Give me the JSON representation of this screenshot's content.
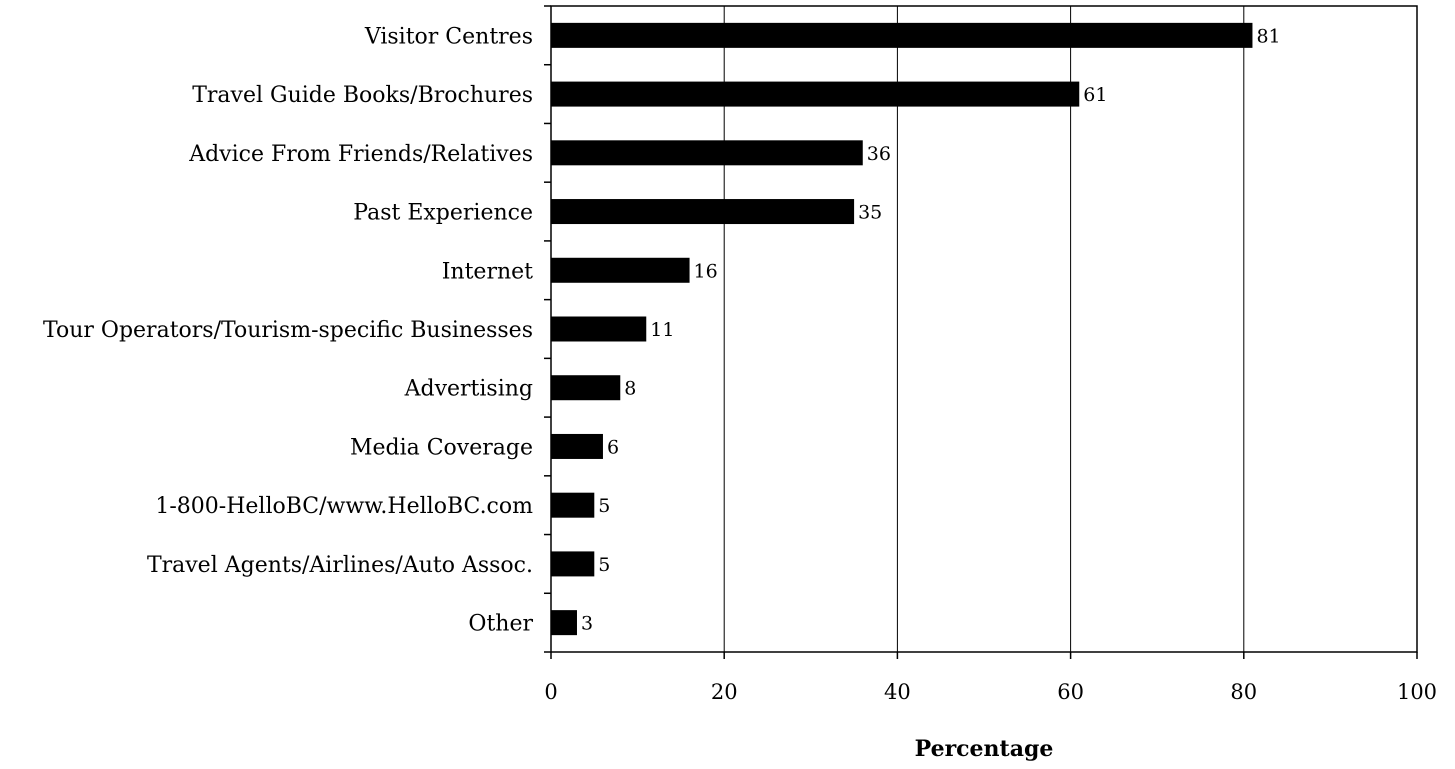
{
  "chart_data": {
    "type": "bar",
    "orientation": "horizontal",
    "categories": [
      "Visitor Centres",
      "Travel Guide Books/Brochures",
      "Advice From Friends/Relatives",
      "Past Experience",
      "Internet",
      "Tour Operators/Tourism-specific Businesses",
      "Advertising",
      "Media Coverage",
      "1-800-HelloBC/www.HelloBC.com",
      "Travel Agents/Airlines/Auto Assoc.",
      "Other"
    ],
    "values": [
      81,
      61,
      36,
      35,
      16,
      11,
      8,
      6,
      5,
      5,
      3
    ],
    "data_labels": [
      "81",
      "61",
      "36",
      "35",
      "16",
      "11",
      "8",
      "6",
      "5",
      "5",
      "3"
    ],
    "title": "",
    "xlabel": "Percentage",
    "ylabel": "",
    "xlim": [
      0,
      100
    ],
    "xticks": [
      0,
      20,
      40,
      60,
      80,
      100
    ],
    "xtick_labels": [
      "0",
      "20",
      "40",
      "60",
      "80",
      "100"
    ],
    "grid": "vertical",
    "legend": "none",
    "colors": {
      "bar": "#000000",
      "grid": "#000000",
      "background": "#ffffff"
    }
  }
}
